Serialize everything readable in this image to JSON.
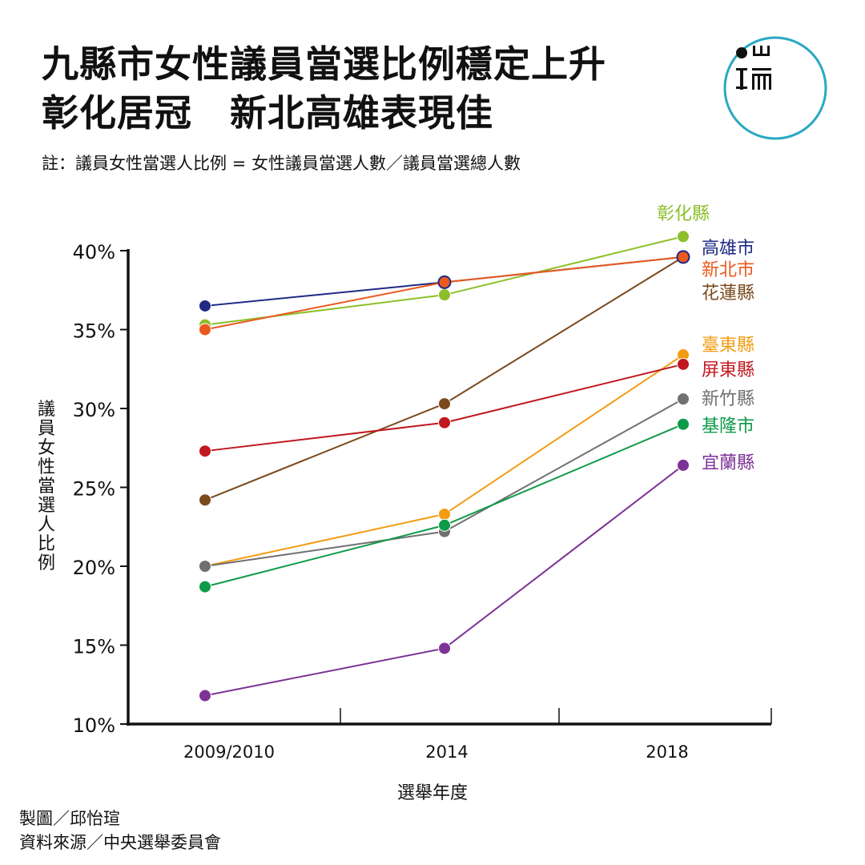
{
  "header": {
    "title_line1": "九縣市女性議員當選比例穩定上升",
    "title_line2": "彰化居冠　新北高雄表現佳",
    "note": "註：議員女性當選人比例 = 女性議員當選人數／議員當選總人數"
  },
  "logo": {
    "icon": "端-logo-icon",
    "accent_color": "#29a8c4"
  },
  "footer": {
    "credit_chart": "製圖／邱怡瑄",
    "credit_source": "資料來源／中央選舉委員會"
  },
  "chart_data": {
    "type": "line",
    "title": "九縣市女性議員當選比例穩定上升",
    "xlabel": "選舉年度",
    "ylabel": "議員女性當選人比例",
    "categories": [
      "2009/2010",
      "2014",
      "2018"
    ],
    "yticks": [
      "10%",
      "15%",
      "20%",
      "25%",
      "30%",
      "35%",
      "40%"
    ],
    "ytick_values": [
      10,
      15,
      20,
      25,
      30,
      35,
      40
    ],
    "ylim": [
      10,
      40
    ],
    "grid": false,
    "legend": "right-end labels",
    "series": [
      {
        "name": "彰化縣",
        "color": "#8cbf2a",
        "values": [
          35.3,
          37.2,
          40.9
        ]
      },
      {
        "name": "高雄市",
        "color": "#1f2a84",
        "values": [
          36.5,
          38.0,
          39.6
        ]
      },
      {
        "name": "新北市",
        "color": "#ea5a1e",
        "values": [
          35.0,
          38.0,
          39.6
        ]
      },
      {
        "name": "花蓮縣",
        "color": "#7b4a1e",
        "values": [
          24.2,
          30.3,
          39.6
        ]
      },
      {
        "name": "臺東縣",
        "color": "#f39c12",
        "values": [
          20.0,
          23.3,
          33.4
        ]
      },
      {
        "name": "屏東縣",
        "color": "#c0181f",
        "values": [
          27.3,
          29.1,
          32.8
        ]
      },
      {
        "name": "新竹縣",
        "color": "#707070",
        "values": [
          20.0,
          22.2,
          30.6
        ]
      },
      {
        "name": "基隆市",
        "color": "#0e9a48",
        "values": [
          18.7,
          22.6,
          29.0
        ]
      },
      {
        "name": "宜蘭縣",
        "color": "#7d3296",
        "values": [
          11.8,
          14.8,
          26.4
        ]
      }
    ]
  }
}
